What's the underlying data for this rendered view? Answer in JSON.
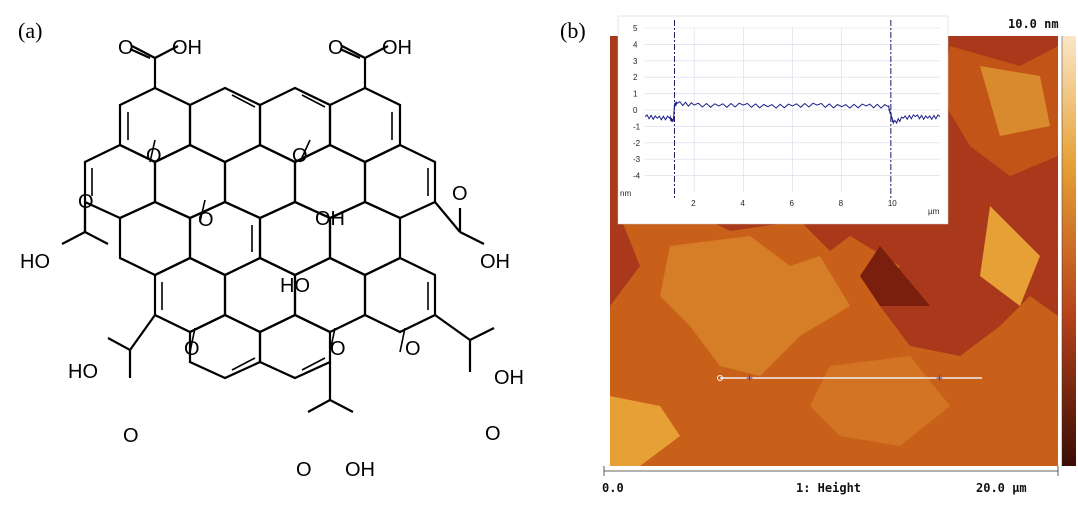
{
  "figure": {
    "panel_a_label": "(a)",
    "panel_b_label": "(b)"
  },
  "molecule": {
    "cooh_o": "O",
    "cooh_oh": "OH",
    "cooh_ho": "HO",
    "epoxy_o": "O",
    "hydroxyl_oh": "OH",
    "hydroxyl_ho": "HO"
  },
  "afm": {
    "scale_max": "10.0 nm",
    "axis_start": "0.0",
    "channel_label": "1: Height",
    "axis_end": "20.0 µm",
    "colors": {
      "dark": "#7a1e0e",
      "mid": "#c8601a",
      "light": "#e6a035"
    }
  },
  "chart_data": {
    "type": "line",
    "title": "",
    "xlabel": "µm",
    "ylabel": "nm",
    "xlim": [
      0,
      12
    ],
    "ylim": [
      -5,
      5
    ],
    "x_ticks": [
      2,
      4,
      6,
      8,
      10
    ],
    "y_ticks": [
      5,
      4,
      3,
      2,
      1,
      0,
      -1,
      -2,
      -3,
      -4
    ],
    "grid": true,
    "markers_x": [
      1.2,
      10.0
    ],
    "series": [
      {
        "x": [
          0,
          0.5,
          1.0,
          1.15,
          1.2,
          1.3,
          2,
          3,
          4,
          5,
          6,
          7,
          8,
          9,
          9.9,
          10.0,
          10.1,
          10.5,
          11,
          11.5,
          12
        ],
        "values": [
          -0.4,
          -0.5,
          -0.5,
          -0.7,
          0.3,
          0.4,
          0.3,
          0.25,
          0.3,
          0.2,
          0.25,
          0.3,
          0.2,
          0.25,
          0.2,
          -0.3,
          -0.8,
          -0.5,
          -0.4,
          -0.5,
          -0.4
        ]
      }
    ]
  }
}
